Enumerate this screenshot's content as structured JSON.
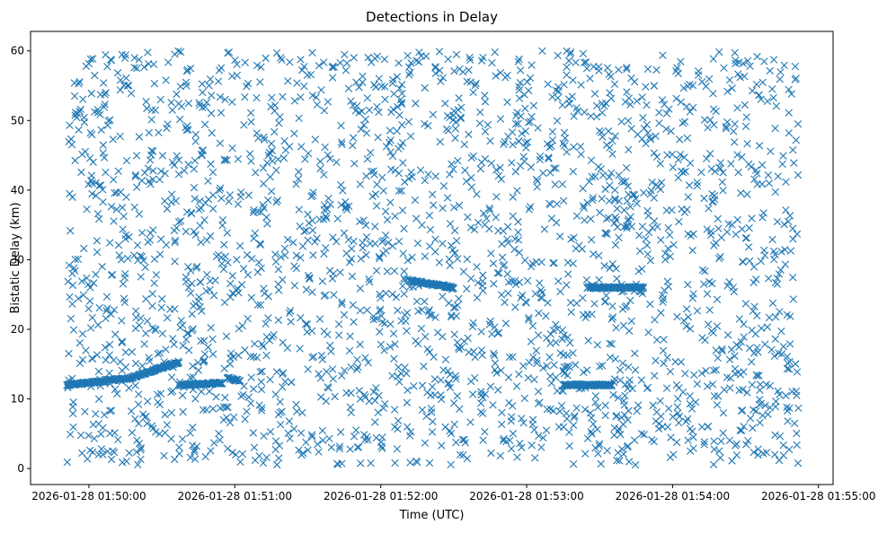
{
  "chart_data": {
    "type": "scatter",
    "title": "Detections in Delay",
    "xlabel": "Time (UTC)",
    "ylabel": "Bistatic Delay (km)",
    "x_ticks": [
      "2026-01-28 01:50:00",
      "2026-01-28 01:51:00",
      "2026-01-28 01:52:00",
      "2026-01-28 01:53:00",
      "2026-01-28 01:54:00",
      "2026-01-28 01:55:00"
    ],
    "y_ticks": [
      "0",
      "10",
      "20",
      "30",
      "40",
      "50",
      "60"
    ],
    "xlim": [
      "2026-01-28 01:49:36",
      "2026-01-28 01:55:06"
    ],
    "ylim": [
      -2.3,
      62.8
    ],
    "marker": "x",
    "series_color": "#1f77b4",
    "grid": false,
    "legend": "none",
    "tracks": [
      {
        "x_start": "2026-01-28 01:49:51",
        "x_end": "2026-01-28 01:50:17",
        "y_start": 12.0,
        "y_end": 13.0
      },
      {
        "x_start": "2026-01-28 01:50:17",
        "x_end": "2026-01-28 01:50:37",
        "y_start": 13.0,
        "y_end": 15.3
      },
      {
        "x_start": "2026-01-28 01:50:37",
        "x_end": "2026-01-28 01:50:55",
        "y_start": 12.0,
        "y_end": 12.3
      },
      {
        "x_start": "2026-01-28 01:50:57",
        "x_end": "2026-01-28 01:51:02",
        "y_start": 13.0,
        "y_end": 12.6
      },
      {
        "x_start": "2026-01-28 01:52:12",
        "x_end": "2026-01-28 01:52:30",
        "y_start": 27.0,
        "y_end": 26.0
      },
      {
        "x_start": "2026-01-28 01:53:15",
        "x_end": "2026-01-28 01:53:35",
        "y_start": 12.0,
        "y_end": 12.0
      },
      {
        "x_start": "2026-01-28 01:53:25",
        "x_end": "2026-01-28 01:53:48",
        "y_start": 26.0,
        "y_end": 26.0
      }
    ],
    "clutter": {
      "x_min": "2026-01-28 01:49:51",
      "x_max": "2026-01-28 01:54:52",
      "y_min": 0.5,
      "y_max": 60.0,
      "count": 2400
    }
  }
}
